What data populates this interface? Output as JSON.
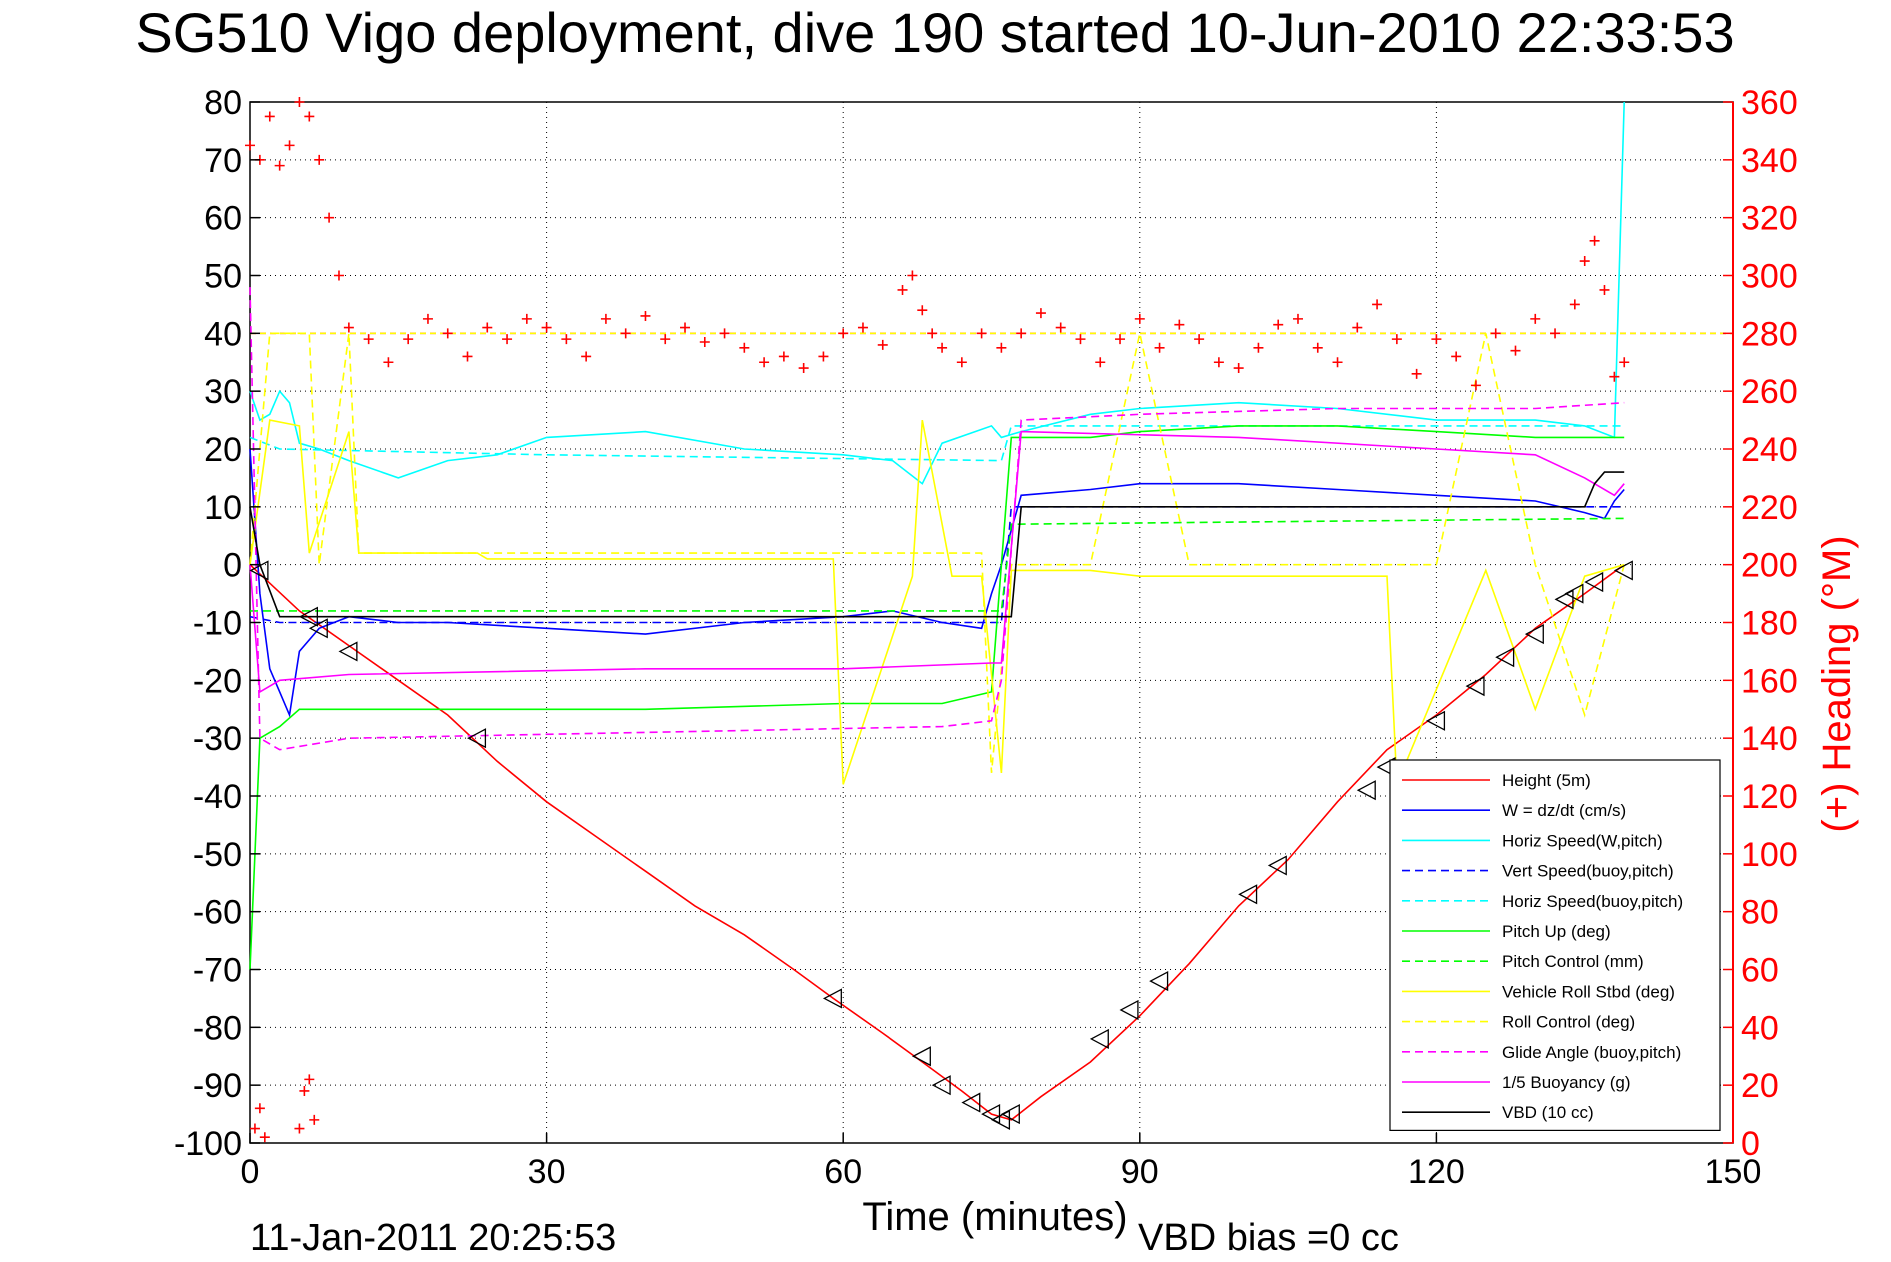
{
  "chart_data": {
    "type": "line",
    "title": "SG510 Vigo deployment, dive 190 started 10-Jun-2010 22:33:53",
    "xlabel": "Time (minutes)",
    "ylabel_right": "(+) Heading (°M)",
    "xlim": [
      0,
      150
    ],
    "ylim": [
      -100,
      80
    ],
    "ylim_right": [
      0,
      360
    ],
    "x_ticks": [
      "0",
      "30",
      "60",
      "90",
      "120",
      "150"
    ],
    "y_ticks": [
      "80",
      "70",
      "60",
      "50",
      "40",
      "30",
      "20",
      "10",
      "0",
      "-10",
      "-20",
      "-30",
      "-40",
      "-50",
      "-60",
      "-70",
      "-80",
      "-90",
      "-100"
    ],
    "y_ticks_right": [
      "360",
      "340",
      "320",
      "300",
      "280",
      "260",
      "240",
      "220",
      "200",
      "180",
      "160",
      "140",
      "120",
      "100",
      "80",
      "60",
      "40",
      "20",
      "0"
    ],
    "grid": true,
    "legend_position": "lower-right",
    "footer_left": "11-Jan-2011 20:25:53",
    "footer_right": "VBD bias =0 cc",
    "colors": {
      "red": "#ff0000",
      "blue": "#0000ff",
      "cyan": "#00ffff",
      "green": "#00ff00",
      "yellow": "#ffff00",
      "magenta": "#ff00ff",
      "black": "#000000"
    },
    "series": [
      {
        "name": "Height (5m)",
        "color": "#ff0000",
        "dash": "solid",
        "x": [
          0,
          5,
          10,
          15,
          20,
          25,
          30,
          35,
          40,
          45,
          50,
          55,
          59,
          64,
          68,
          72,
          75,
          77,
          80,
          85,
          90,
          95,
          100,
          105,
          110,
          115,
          120,
          125,
          130,
          135,
          139
        ],
        "y": [
          0,
          -8,
          -14,
          -20,
          -26,
          -34,
          -41,
          -47,
          -53,
          -59,
          -64,
          -70,
          -75,
          -81,
          -86,
          -91,
          -95,
          -96,
          -92,
          -86,
          -78,
          -69,
          -59,
          -51,
          -41,
          -32,
          -26,
          -19,
          -11,
          -5,
          0
        ]
      },
      {
        "name": "W = dz/dt (cm/s)",
        "color": "#0000ff",
        "dash": "solid",
        "x": [
          0,
          1,
          2,
          3,
          4,
          5,
          7,
          10,
          15,
          20,
          30,
          40,
          50,
          60,
          65,
          70,
          74,
          75,
          76,
          78,
          85,
          90,
          100,
          110,
          120,
          130,
          135,
          137,
          138,
          139
        ],
        "y": [
          20,
          -5,
          -18,
          -22,
          -26,
          -15,
          -11,
          -9,
          -10,
          -10,
          -11,
          -12,
          -10,
          -9,
          -8,
          -10,
          -11,
          -5,
          0,
          12,
          13,
          14,
          14,
          13,
          12,
          11,
          9,
          8,
          11,
          13
        ]
      },
      {
        "name": "Horiz Speed(W,pitch)",
        "color": "#00ffff",
        "dash": "solid",
        "x": [
          0,
          1,
          2,
          3,
          4,
          5,
          7,
          10,
          15,
          20,
          25,
          30,
          40,
          50,
          60,
          65,
          68,
          70,
          75,
          76,
          78,
          85,
          90,
          100,
          110,
          120,
          130,
          135,
          138,
          139
        ],
        "y": [
          30,
          25,
          26,
          30,
          28,
          21,
          20,
          18,
          15,
          18,
          19,
          22,
          23,
          20,
          19,
          18,
          14,
          21,
          24,
          22,
          23,
          26,
          27,
          28,
          27,
          25,
          25,
          24,
          22,
          80
        ]
      },
      {
        "name": "Vert Speed(buoy,pitch)",
        "color": "#0000ff",
        "dash": "dashed",
        "x": [
          0,
          3,
          76,
          77,
          139
        ],
        "y": [
          -9,
          -10,
          -10,
          10,
          10
        ]
      },
      {
        "name": "Horiz Speed(buoy,pitch)",
        "color": "#00ffff",
        "dash": "dashed",
        "x": [
          0,
          3,
          30,
          76,
          77,
          139
        ],
        "y": [
          22,
          20,
          19,
          18,
          24,
          24
        ]
      },
      {
        "name": "Pitch Up (deg)",
        "color": "#00ff00",
        "dash": "solid",
        "x": [
          0,
          1,
          3,
          5,
          10,
          20,
          40,
          60,
          70,
          75,
          77,
          85,
          90,
          100,
          110,
          120,
          130,
          139
        ],
        "y": [
          -70,
          -30,
          -28,
          -25,
          -25,
          -25,
          -25,
          -24,
          -24,
          -22,
          22,
          22,
          23,
          24,
          24,
          23,
          22,
          22
        ]
      },
      {
        "name": "Pitch Control (mm)",
        "color": "#00ff00",
        "dash": "dashed",
        "x": [
          0,
          1,
          76,
          77,
          139
        ],
        "y": [
          -8,
          -8,
          -8,
          7,
          8
        ]
      },
      {
        "name": "Vehicle Roll Stbd (deg)",
        "color": "#ffff00",
        "dash": "solid",
        "x": [
          0,
          2,
          5,
          6,
          10,
          11,
          23,
          24,
          40,
          59,
          60,
          67,
          68,
          71,
          74,
          76,
          77,
          85,
          90,
          95,
          100,
          115,
          116,
          125,
          130,
          135,
          139
        ],
        "y": [
          0,
          25,
          24,
          2,
          23,
          2,
          2,
          1,
          1,
          1,
          -38,
          -2,
          25,
          -2,
          -2,
          -36,
          -1,
          -1,
          -2,
          -2,
          -2,
          -2,
          -38,
          -1,
          -25,
          -2,
          0
        ]
      },
      {
        "name": "Roll Control (deg)",
        "color": "#ffff00",
        "dash": "dashed",
        "x": [
          0,
          2,
          6,
          7,
          10,
          11,
          20,
          30,
          50,
          60,
          70,
          74,
          75,
          77,
          80,
          85,
          90,
          95,
          100,
          110,
          120,
          125,
          130,
          135,
          139
        ],
        "y": [
          0,
          40,
          40,
          0,
          40,
          2,
          2,
          2,
          2,
          2,
          2,
          2,
          -36,
          0,
          0,
          0,
          40,
          0,
          0,
          0,
          0,
          40,
          0,
          -26,
          0
        ]
      },
      {
        "name": "Glide Angle (buoy,pitch)",
        "color": "#ff00ff",
        "dash": "dashed",
        "x": [
          0,
          1,
          3,
          10,
          40,
          70,
          75,
          76,
          78,
          90,
          110,
          130,
          139
        ],
        "y": [
          48,
          -30,
          -32,
          -30,
          -29,
          -28,
          -27,
          -20,
          25,
          26,
          27,
          27,
          28
        ]
      },
      {
        "name": "1/5 Buoyancy (g)",
        "color": "#ff00ff",
        "dash": "solid",
        "x": [
          0,
          1,
          3,
          10,
          40,
          60,
          75,
          76,
          78,
          100,
          120,
          130,
          135,
          138,
          139
        ],
        "y": [
          0,
          -22,
          -20,
          -19,
          -18,
          -18,
          -17,
          -17,
          23,
          22,
          20,
          19,
          15,
          12,
          14
        ]
      },
      {
        "name": "VBD (10 cc)",
        "color": "#000000",
        "dash": "solid",
        "x": [
          0,
          1,
          3,
          76,
          77,
          78,
          135,
          136,
          137,
          139
        ],
        "y": [
          10,
          0,
          -9,
          -9,
          -9,
          10,
          10,
          14,
          16,
          16
        ]
      }
    ],
    "reference_lines": [
      {
        "color": "#ff0000",
        "dash": "dashed",
        "y_right": 280
      },
      {
        "color": "#ffff00",
        "dash": "dashed",
        "y": 40
      }
    ],
    "heading": {
      "color": "#ff0000",
      "marker": "+",
      "axis": "right",
      "x": [
        0,
        1,
        2,
        3,
        4,
        5,
        6,
        7,
        8,
        9,
        10,
        12,
        14,
        16,
        18,
        20,
        22,
        24,
        26,
        28,
        30,
        32,
        34,
        36,
        38,
        40,
        42,
        44,
        46,
        48,
        50,
        52,
        54,
        56,
        58,
        60,
        62,
        64,
        66,
        67,
        68,
        69,
        70,
        72,
        74,
        76,
        78,
        80,
        82,
        84,
        86,
        88,
        90,
        92,
        94,
        96,
        98,
        100,
        102,
        104,
        106,
        108,
        110,
        112,
        114,
        116,
        118,
        120,
        122,
        124,
        126,
        128,
        130,
        132,
        134,
        135,
        136,
        137,
        138,
        139
      ],
      "y": [
        345,
        340,
        355,
        338,
        345,
        360,
        355,
        340,
        320,
        300,
        282,
        278,
        270,
        278,
        285,
        280,
        272,
        282,
        278,
        285,
        282,
        278,
        272,
        285,
        280,
        286,
        278,
        282,
        277,
        280,
        275,
        270,
        272,
        268,
        272,
        280,
        282,
        276,
        295,
        300,
        288,
        280,
        275,
        270,
        280,
        275,
        280,
        287,
        282,
        278,
        270,
        278,
        285,
        275,
        283,
        278,
        270,
        268,
        275,
        283,
        285,
        275,
        270,
        282,
        290,
        278,
        266,
        278,
        272,
        262,
        280,
        274,
        285,
        280,
        290,
        305,
        312,
        295,
        265,
        270
      ]
    },
    "heading_surface": {
      "color": "#ff0000",
      "marker": "+",
      "axis": "right",
      "x": [
        0.5,
        1,
        1.5,
        5,
        5.5,
        6,
        6.5
      ],
      "y": [
        5,
        12,
        2,
        5,
        18,
        22,
        8
      ]
    },
    "markers": {
      "color": "#000000",
      "shape": "triangle",
      "x": [
        1,
        6,
        7,
        10,
        23,
        59,
        68,
        70,
        73,
        75,
        76,
        77,
        86,
        89,
        92,
        101,
        104,
        113,
        115,
        120,
        124,
        127,
        130,
        133,
        134,
        136,
        139
      ],
      "y": [
        -1,
        -9,
        -11,
        -15,
        -30,
        -75,
        -85,
        -90,
        -93,
        -95,
        -96,
        -95,
        -82,
        -77,
        -72,
        -57,
        -52,
        -39,
        -35,
        -27,
        -21,
        -16,
        -12,
        -6,
        -5,
        -3,
        -1
      ]
    }
  }
}
